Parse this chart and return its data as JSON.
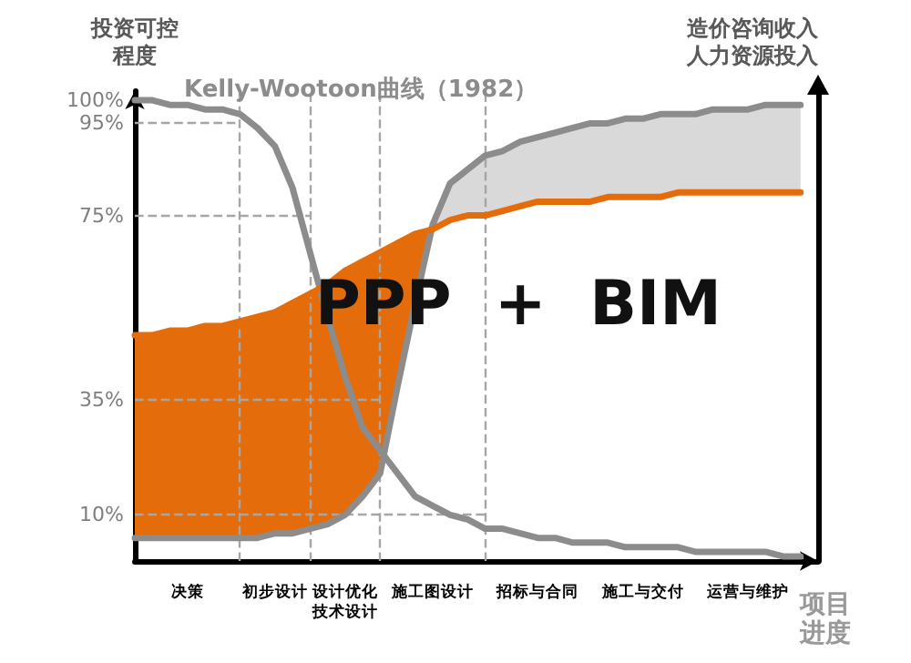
{
  "chart_data": {
    "type": "line",
    "title": "Kelly-Wootoon曲线（1982）",
    "ylabel": "投资可控程度",
    "y2label": "造价咨询收入人力资源投入",
    "xlabel": "项目进度",
    "annotations": [
      "PPP  +  BIM"
    ],
    "categories": [
      null,
      null,
      null,
      "决策",
      null,
      null,
      null,
      null,
      "初步设计",
      null,
      null,
      null,
      "设计优化技术设计",
      null,
      null,
      null,
      null,
      "施工图设计",
      null,
      null,
      null,
      null,
      null,
      "招标与合同",
      null,
      null,
      null,
      null,
      null,
      "施工与交付",
      null,
      null,
      null,
      null,
      null,
      "运营与维护",
      null,
      null,
      null,
      null
    ],
    "ylim": [
      0,
      102
    ],
    "yticks": [
      {
        "value": 10,
        "label": "10%"
      },
      {
        "value": 35,
        "label": "35%"
      },
      {
        "value": 75,
        "label": "75%"
      },
      {
        "value": 95,
        "label": "95%"
      },
      {
        "value": 100,
        "label": "100%"
      }
    ],
    "colors": [
      "#d9d9d9",
      "#e46c0a"
    ],
    "series": [
      {
        "color": "#8c8c8c",
        "values": [
          100,
          100,
          99,
          99,
          98,
          98,
          97,
          94,
          90,
          81,
          67,
          53,
          40,
          29,
          24,
          19,
          14,
          12,
          10,
          9,
          7,
          7,
          6,
          5,
          5,
          4,
          4,
          4,
          3,
          3,
          3,
          3,
          2,
          2,
          2,
          2,
          2,
          1,
          1,
          null
        ]
      },
      {
        "color": "#8c8c8c",
        "values": [
          5,
          5,
          5,
          5,
          5,
          5,
          5,
          5,
          6,
          6,
          7,
          8,
          10,
          14,
          19,
          38,
          56,
          73,
          82,
          85,
          88,
          89,
          91,
          92,
          93,
          94,
          95,
          95,
          96,
          96,
          97,
          97,
          97,
          98,
          98,
          98,
          99,
          99,
          99,
          null
        ],
        "lower": [
          null,
          null,
          null,
          null,
          null,
          null,
          null,
          null,
          null,
          null,
          null,
          null,
          null,
          null,
          null,
          null,
          71,
          72,
          74,
          75,
          75,
          76,
          77,
          78,
          78,
          78,
          78,
          79,
          79,
          79,
          79,
          80,
          80,
          80,
          80,
          80,
          80,
          80,
          80,
          null
        ],
        "upper": [
          null,
          null,
          null,
          null,
          null,
          null,
          null,
          null,
          null,
          null,
          null,
          null,
          null,
          null,
          null,
          null,
          71,
          73,
          82,
          85,
          88,
          89,
          91,
          92,
          93,
          94,
          95,
          95,
          96,
          96,
          97,
          97,
          97,
          98,
          98,
          98,
          99,
          99,
          99,
          null
        ]
      },
      {
        "color": "#e46c0a",
        "values": [
          49,
          49,
          50,
          50,
          51,
          51,
          52,
          53,
          54,
          56,
          58,
          60,
          63,
          65,
          67,
          69,
          71,
          72,
          74,
          75,
          75,
          76,
          77,
          78,
          78,
          78,
          78,
          79,
          79,
          79,
          79,
          80,
          80,
          80,
          80,
          80,
          80,
          80,
          80,
          null
        ],
        "lower": [
          5,
          5,
          5,
          5,
          5,
          5,
          5,
          5,
          6,
          6,
          7,
          8,
          10,
          14,
          19,
          38,
          56,
          72,
          null,
          null,
          null,
          null,
          null,
          null,
          null,
          null,
          null,
          null,
          null,
          null,
          null,
          null,
          null,
          null,
          null,
          null,
          null,
          null,
          null,
          null
        ],
        "upper": [
          49,
          49,
          50,
          50,
          51,
          51,
          52,
          53,
          54,
          56,
          58,
          60,
          63,
          65,
          67,
          69,
          71,
          72,
          null,
          null,
          null,
          null,
          null,
          null,
          null,
          null,
          null,
          null,
          null,
          null,
          null,
          null,
          null,
          null,
          null,
          null,
          null,
          null,
          null,
          null
        ]
      }
    ],
    "ref_lines": [
      {
        "axis": "y",
        "value": 95,
        "color": "#a6a6a6",
        "line_style": "dashed"
      },
      {
        "axis": "y",
        "value": 75,
        "color": "#a6a6a6",
        "line_style": "dashed"
      },
      {
        "axis": "y",
        "value": 35,
        "color": "#a6a6a6",
        "line_style": "dashed"
      },
      {
        "axis": "y",
        "value": 10,
        "color": "#a6a6a6",
        "line_style": "dashed"
      }
    ],
    "grid": "x",
    "marker": "none",
    "line_style": "solid"
  }
}
